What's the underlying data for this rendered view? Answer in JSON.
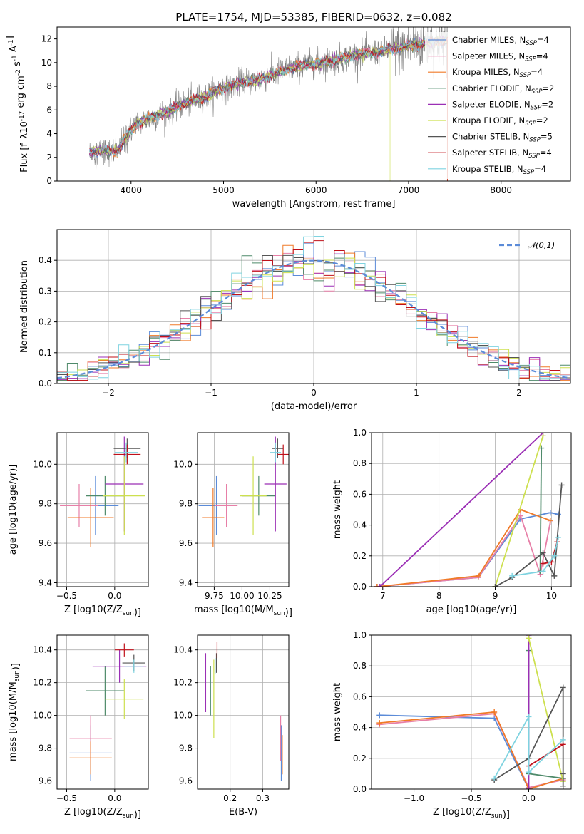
{
  "title": "PLATE=1754, MJD=53385, FIBERID=0632, z=0.082",
  "chart_data": [
    {
      "id": "spectrum",
      "type": "line",
      "xlabel": "wavelength [Angstrom, rest frame]",
      "ylabel": "Flux [f_λ10^-17 erg cm^-2 s^-1 A^-1]",
      "xlim": [
        3200,
        8750
      ],
      "ylim": [
        0,
        13
      ],
      "xticks": [
        4000,
        5000,
        6000,
        7000,
        8000
      ],
      "yticks": [
        0,
        2,
        4,
        6,
        8,
        10,
        12
      ],
      "grid": false,
      "legend_position": "right",
      "data_color": "#808080",
      "data_range": [
        3550,
        7420
      ],
      "series": [
        {
          "name": "Chabrier MILES, N_SSP=4",
          "color": "#5b8bd8",
          "lw": 1.0
        },
        {
          "name": "Salpeter MILES, N_SSP=4",
          "color": "#e77fa7",
          "lw": 1.0
        },
        {
          "name": "Kroupa MILES, N_SSP=4",
          "color": "#f07a28",
          "lw": 1.0
        },
        {
          "name": "Chabrier ELODIE, N_SSP=2",
          "color": "#4e8a6a",
          "lw": 0.7
        },
        {
          "name": "Salpeter ELODIE, N_SSP=2",
          "color": "#9b2fb5",
          "lw": 0.7
        },
        {
          "name": "Kroupa ELODIE, N_SSP=2",
          "color": "#cde04f",
          "lw": 0.7
        },
        {
          "name": "Chabrier STELIB, N_SSP=5",
          "color": "#555555",
          "lw": 0.7
        },
        {
          "name": "Salpeter STELIB, N_SSP=4",
          "color": "#c0101a",
          "lw": 0.7
        },
        {
          "name": "Kroupa STELIB, N_SSP=4",
          "color": "#7fd3e0",
          "lw": 0.7
        }
      ],
      "continuum": [
        [
          3550,
          2.4
        ],
        [
          3700,
          2.6
        ],
        [
          3850,
          2.5
        ],
        [
          3950,
          3.8
        ],
        [
          4050,
          4.8
        ],
        [
          4200,
          5.3
        ],
        [
          4400,
          5.9
        ],
        [
          4600,
          6.6
        ],
        [
          4800,
          7.1
        ],
        [
          5000,
          7.9
        ],
        [
          5200,
          8.3
        ],
        [
          5400,
          8.6
        ],
        [
          5600,
          9.2
        ],
        [
          5800,
          9.7
        ],
        [
          6000,
          9.9
        ],
        [
          6200,
          10.2
        ],
        [
          6400,
          10.6
        ],
        [
          6600,
          10.8
        ],
        [
          6800,
          11.1
        ],
        [
          7000,
          11.4
        ],
        [
          7200,
          11.7
        ],
        [
          7420,
          11.9
        ]
      ]
    },
    {
      "id": "residuals",
      "type": "histogram",
      "xlabel": "(data-model)/error",
      "ylabel": "Normed distribution",
      "xlim": [
        -2.5,
        2.5
      ],
      "ylim": [
        0,
        0.5
      ],
      "xticks": [
        -2,
        -1,
        0,
        1,
        2
      ],
      "yticks": [
        0.0,
        0.1,
        0.2,
        0.3,
        0.4
      ],
      "grid": true,
      "legend": "𝒩(0,1)",
      "legend_position": "top-right",
      "normal_curve": {
        "mean": 0,
        "sigma": 1,
        "color": "#5b8bd8"
      },
      "bin_width": 0.1
    },
    {
      "id": "age-vs-Z",
      "type": "errorbar",
      "xlabel": "Z [log10(Z/Z_sun)]",
      "ylabel": "age [log10(age/yr)]",
      "xlim": [
        -0.6,
        0.35
      ],
      "ylim": [
        9.38,
        10.16
      ],
      "xticks": [
        -0.5,
        0.0
      ],
      "yticks": [
        9.4,
        9.6,
        9.8,
        10.0
      ],
      "grid": true,
      "points": [
        {
          "series": 0,
          "x": -0.2,
          "y": 9.79,
          "xerr": 0.24,
          "yerr": 0.15
        },
        {
          "series": 1,
          "x": -0.37,
          "y": 9.79,
          "xerr": 0.2,
          "yerr": 0.11
        },
        {
          "series": 2,
          "x": -0.25,
          "y": 9.73,
          "xerr": 0.24,
          "yerr": 0.15
        },
        {
          "series": 3,
          "x": -0.1,
          "y": 9.84,
          "xerr": 0.2,
          "yerr": 0.1
        },
        {
          "series": 4,
          "x": 0.1,
          "y": 9.9,
          "xerr": 0.2,
          "yerr": 0.24
        },
        {
          "series": 5,
          "x": 0.1,
          "y": 9.84,
          "xerr": 0.22,
          "yerr": 0.2
        },
        {
          "series": 6,
          "x": 0.13,
          "y": 10.08,
          "xerr": 0.14,
          "yerr": 0.05
        },
        {
          "series": 7,
          "x": 0.13,
          "y": 10.05,
          "xerr": 0.14,
          "yerr": 0.05
        },
        {
          "series": 8,
          "x": 0.12,
          "y": 10.06,
          "xerr": 0.12,
          "yerr": 0.05
        }
      ]
    },
    {
      "id": "age-vs-mass",
      "type": "errorbar",
      "xlabel": "mass [log10(M/M_sun)]",
      "ylabel": "",
      "xlim": [
        9.6,
        10.42
      ],
      "ylim": [
        9.38,
        10.16
      ],
      "xticks": [
        9.75,
        10.0,
        10.25
      ],
      "yticks": [
        9.4,
        9.6,
        9.8,
        10.0
      ],
      "grid": true,
      "points": [
        {
          "series": 0,
          "x": 9.77,
          "y": 9.79,
          "xerr": 0.16,
          "yerr": 0.15
        },
        {
          "series": 1,
          "x": 9.86,
          "y": 9.79,
          "xerr": 0.1,
          "yerr": 0.11
        },
        {
          "series": 2,
          "x": 9.74,
          "y": 9.73,
          "xerr": 0.1,
          "yerr": 0.15
        },
        {
          "series": 3,
          "x": 10.15,
          "y": 9.84,
          "xerr": 0.15,
          "yerr": 0.1
        },
        {
          "series": 4,
          "x": 10.3,
          "y": 9.9,
          "xerr": 0.1,
          "yerr": 0.24
        },
        {
          "series": 5,
          "x": 10.1,
          "y": 9.84,
          "xerr": 0.12,
          "yerr": 0.2
        },
        {
          "series": 6,
          "x": 10.32,
          "y": 10.08,
          "xerr": 0.05,
          "yerr": 0.05
        },
        {
          "series": 7,
          "x": 10.37,
          "y": 10.05,
          "xerr": 0.05,
          "yerr": 0.05
        },
        {
          "series": 8,
          "x": 10.3,
          "y": 10.06,
          "xerr": 0.05,
          "yerr": 0.05
        }
      ]
    },
    {
      "id": "weight-vs-age",
      "type": "line",
      "xlabel": "age [log10(age/yr)]",
      "ylabel": "mass weight",
      "xlim": [
        6.8,
        10.35
      ],
      "ylim": [
        0,
        1
      ],
      "xticks": [
        7,
        8,
        9,
        10
      ],
      "yticks": [
        0.0,
        0.2,
        0.4,
        0.6,
        0.8,
        1.0
      ],
      "grid": true,
      "series": [
        {
          "series": 0,
          "x": [
            6.9,
            8.7,
            9.45,
            9.98,
            10.12
          ],
          "y": [
            0.0,
            0.06,
            0.44,
            0.48,
            0.47
          ]
        },
        {
          "series": 1,
          "x": [
            6.9,
            8.7,
            9.45,
            9.8,
            9.98
          ],
          "y": [
            0.0,
            0.06,
            0.46,
            0.08,
            0.42
          ]
        },
        {
          "series": 2,
          "x": [
            6.9,
            8.7,
            9.45,
            9.98
          ],
          "y": [
            0.0,
            0.07,
            0.5,
            0.43
          ]
        },
        {
          "series": 3,
          "x": [
            9.8,
            9.82
          ],
          "y": [
            0.1,
            0.9
          ]
        },
        {
          "series": 4,
          "x": [
            6.95,
            9.85
          ],
          "y": [
            0.0,
            1.0
          ]
        },
        {
          "series": 5,
          "x": [
            9.0,
            9.85
          ],
          "y": [
            0.0,
            0.98
          ]
        },
        {
          "series": 6,
          "x": [
            9.0,
            9.3,
            9.85,
            10.05,
            10.18
          ],
          "y": [
            0.0,
            0.06,
            0.22,
            0.07,
            0.66
          ]
        },
        {
          "series": 7,
          "x": [
            9.85,
            10.0,
            10.1
          ],
          "y": [
            0.15,
            0.16,
            0.29
          ]
        },
        {
          "series": 8,
          "x": [
            9.3,
            9.85,
            10.05,
            10.12
          ],
          "y": [
            0.07,
            0.1,
            0.2,
            0.32
          ]
        }
      ]
    },
    {
      "id": "mass-vs-Z",
      "type": "errorbar",
      "xlabel": "Z [log10(Z/Z_sun)]",
      "ylabel": "mass [log10(M/M_sun)]",
      "xlim": [
        -0.6,
        0.35
      ],
      "ylim": [
        9.55,
        10.49
      ],
      "xticks": [
        -0.5,
        0.0
      ],
      "yticks": [
        9.6,
        9.8,
        10.0,
        10.2,
        10.4
      ],
      "grid": true,
      "points": [
        {
          "series": 0,
          "x": -0.25,
          "y": 9.77,
          "xerr": 0.22,
          "yerr": 0.17
        },
        {
          "series": 1,
          "x": -0.25,
          "y": 9.86,
          "xerr": 0.22,
          "yerr": 0.14
        },
        {
          "series": 2,
          "x": -0.25,
          "y": 9.74,
          "xerr": 0.22,
          "yerr": 0.1
        },
        {
          "series": 3,
          "x": -0.1,
          "y": 10.15,
          "xerr": 0.2,
          "yerr": 0.15
        },
        {
          "series": 4,
          "x": 0.05,
          "y": 10.3,
          "xerr": 0.28,
          "yerr": 0.1
        },
        {
          "series": 5,
          "x": 0.1,
          "y": 10.1,
          "xerr": 0.2,
          "yerr": 0.12
        },
        {
          "series": 6,
          "x": 0.2,
          "y": 10.32,
          "xerr": 0.12,
          "yerr": 0.05
        },
        {
          "series": 7,
          "x": 0.1,
          "y": 10.4,
          "xerr": 0.1,
          "yerr": 0.04
        },
        {
          "series": 8,
          "x": 0.2,
          "y": 10.3,
          "xerr": 0.1,
          "yerr": 0.04
        }
      ]
    },
    {
      "id": "mass-vs-ebv",
      "type": "errorbar",
      "xlabel": "E(B-V)",
      "ylabel": "",
      "xlim": [
        0.1,
        0.38
      ],
      "ylim": [
        9.55,
        10.49
      ],
      "xticks": [
        0.2,
        0.3
      ],
      "yticks": [
        9.6,
        9.8,
        10.0,
        10.2,
        10.4
      ],
      "grid": true,
      "points": [
        {
          "series": 0,
          "x": 0.357,
          "y": 9.77,
          "xerr": 0,
          "yerr": 0.17
        },
        {
          "series": 1,
          "x": 0.355,
          "y": 9.86,
          "xerr": 0,
          "yerr": 0.14
        },
        {
          "series": 2,
          "x": 0.36,
          "y": 9.76,
          "xerr": 0,
          "yerr": 0.12
        },
        {
          "series": 3,
          "x": 0.14,
          "y": 10.15,
          "xerr": 0,
          "yerr": 0.15
        },
        {
          "series": 4,
          "x": 0.125,
          "y": 10.2,
          "xerr": 0,
          "yerr": 0.18
        },
        {
          "series": 5,
          "x": 0.15,
          "y": 10.1,
          "xerr": 0,
          "yerr": 0.24
        },
        {
          "series": 6,
          "x": 0.158,
          "y": 10.32,
          "xerr": 0,
          "yerr": 0.06
        },
        {
          "series": 7,
          "x": 0.16,
          "y": 10.4,
          "xerr": 0,
          "yerr": 0.05
        },
        {
          "series": 8,
          "x": 0.154,
          "y": 10.3,
          "xerr": 0,
          "yerr": 0.05
        }
      ]
    },
    {
      "id": "weight-vs-Z",
      "type": "line",
      "xlabel": "Z [log10(Z/Z_sun)]",
      "ylabel": "mass weight",
      "xlim": [
        -1.37,
        0.37
      ],
      "ylim": [
        0,
        1
      ],
      "xticks": [
        -1.0,
        -0.5,
        0.0
      ],
      "yticks": [
        0.0,
        0.2,
        0.4,
        0.6,
        0.8,
        1.0
      ],
      "grid": true,
      "series": [
        {
          "series": 0,
          "x": [
            -1.3,
            -0.3,
            0.0,
            0.3
          ],
          "y": [
            0.48,
            0.46,
            0.0,
            0.07
          ]
        },
        {
          "series": 1,
          "x": [
            -1.3,
            -0.3,
            0.0,
            0.3
          ],
          "y": [
            0.42,
            0.49,
            0.01,
            0.06
          ]
        },
        {
          "series": 2,
          "x": [
            -1.3,
            -0.3,
            0.0,
            0.3
          ],
          "y": [
            0.43,
            0.5,
            0.0,
            0.07
          ]
        },
        {
          "series": 3,
          "x": [
            0.0,
            0.0,
            0.3
          ],
          "y": [
            0.9,
            0.1,
            0.07
          ]
        },
        {
          "series": 4,
          "x": [
            0.0,
            0.0
          ],
          "y": [
            0.0,
            1.0
          ]
        },
        {
          "series": 5,
          "x": [
            0.0,
            0.3
          ],
          "y": [
            0.98,
            0.05
          ]
        },
        {
          "series": 6,
          "x": [
            -0.3,
            0.0,
            0.3,
            0.3,
            0.3
          ],
          "y": [
            0.06,
            0.2,
            0.66,
            0.1,
            0.02
          ]
        },
        {
          "series": 7,
          "x": [
            0.0,
            0.3
          ],
          "y": [
            0.15,
            0.29
          ]
        },
        {
          "series": 8,
          "x": [
            -0.3,
            0.0,
            0.0,
            0.3
          ],
          "y": [
            0.07,
            0.47,
            0.11,
            0.32
          ]
        }
      ]
    }
  ]
}
